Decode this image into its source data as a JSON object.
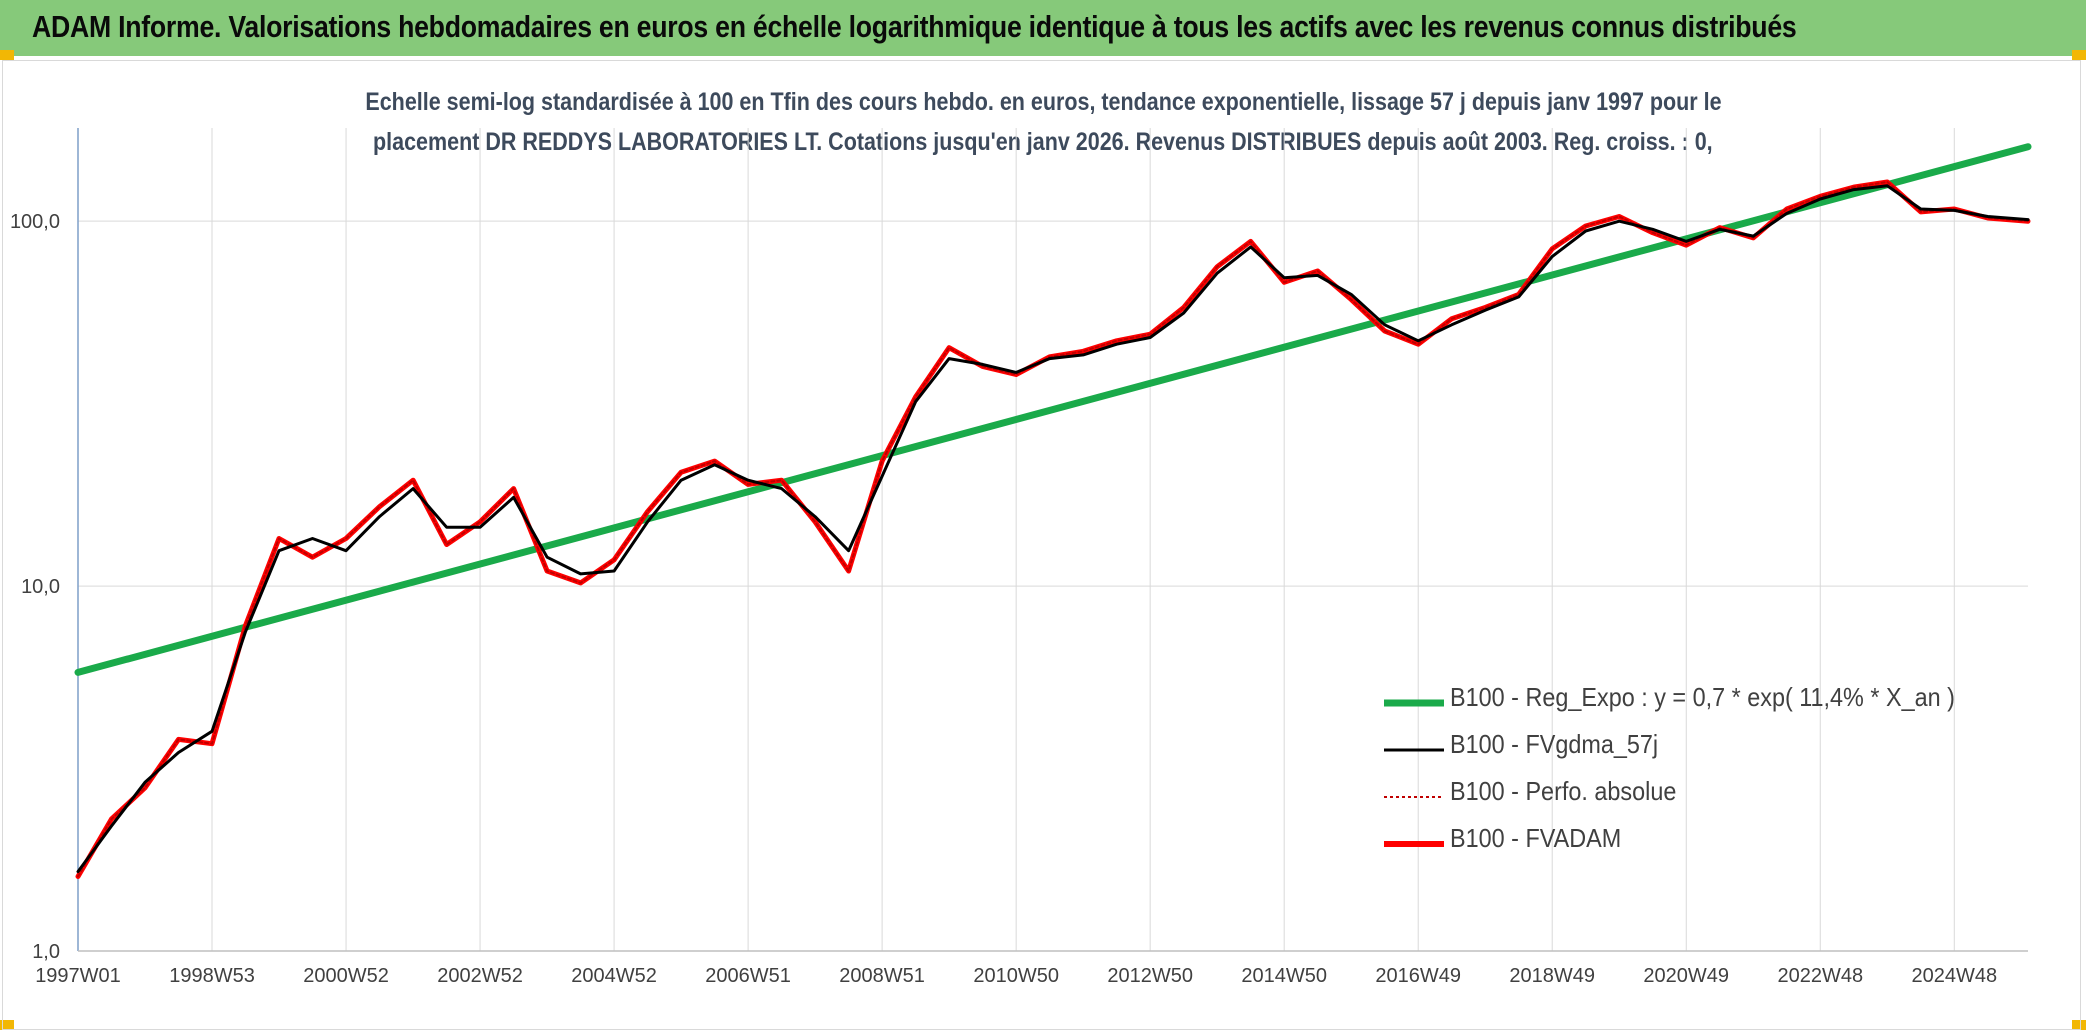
{
  "header": {
    "title": "ADAM Informe. Valorisations hebdomadaires en euros en échelle logarithmique identique à tous les actifs avec les revenus connus distribués"
  },
  "subtitle": {
    "line1": "Echelle semi-log standardisée à 100 en Tfin des cours hebdo. en euros, tendance exponentielle, lissage 57 j depuis janv 1997 pour le",
    "line2": "placement DR REDDYS LABORATORIES LT. Cotations jusqu'en janv 2026. Revenus DISTRIBUES depuis août 2003. Reg. croiss. : 0,"
  },
  "colors": {
    "banner": "#86c97a",
    "reg": "#1aaa4a",
    "fvgdma": "#000000",
    "perfo": "#c00000",
    "fvadam": "#ff0000",
    "grid": "#d9d9d9",
    "axis_text": "#404040"
  },
  "chart_data": {
    "type": "line",
    "yscale": "log",
    "ylim": [
      1,
      180
    ],
    "xlim": [
      1997.0,
      2026.1
    ],
    "y_ticks": [
      {
        "value": 1,
        "label": "1,0"
      },
      {
        "value": 10,
        "label": "10,0"
      },
      {
        "value": 100,
        "label": "100,0"
      }
    ],
    "x_ticks": [
      {
        "value": 1997.0,
        "label": "1997W01"
      },
      {
        "value": 1999.0,
        "label": "1998W53"
      },
      {
        "value": 2001.0,
        "label": "2000W52"
      },
      {
        "value": 2003.0,
        "label": "2002W52"
      },
      {
        "value": 2005.0,
        "label": "2004W52"
      },
      {
        "value": 2007.0,
        "label": "2006W51"
      },
      {
        "value": 2009.0,
        "label": "2008W51"
      },
      {
        "value": 2011.0,
        "label": "2010W50"
      },
      {
        "value": 2013.0,
        "label": "2012W50"
      },
      {
        "value": 2015.0,
        "label": "2014W50"
      },
      {
        "value": 2017.0,
        "label": "2016W49"
      },
      {
        "value": 2019.0,
        "label": "2018W49"
      },
      {
        "value": 2021.0,
        "label": "2020W49"
      },
      {
        "value": 2023.0,
        "label": "2022W48"
      },
      {
        "value": 2025.0,
        "label": "2024W48"
      }
    ],
    "series": [
      {
        "name": "B100 - Reg_Expo : y = 0,7 * exp( 11,4% *  X_an )",
        "key": "reg",
        "x": [
          1997.0,
          2026.1
        ],
        "y": [
          5.8,
          160
        ]
      },
      {
        "name": "B100 - FVgdma_57j",
        "key": "fvgdma",
        "x": [
          1997.0,
          1997.5,
          1998.0,
          1998.5,
          1999.0,
          1999.5,
          2000.0,
          2000.5,
          2001.0,
          2001.5,
          2002.0,
          2002.5,
          2003.0,
          2003.5,
          2004.0,
          2004.5,
          2005.0,
          2005.5,
          2006.0,
          2006.5,
          2007.0,
          2007.5,
          2008.0,
          2008.5,
          2009.0,
          2009.5,
          2010.0,
          2010.5,
          2011.0,
          2011.5,
          2012.0,
          2012.5,
          2013.0,
          2013.5,
          2014.0,
          2014.5,
          2015.0,
          2015.5,
          2016.0,
          2016.5,
          2017.0,
          2017.5,
          2018.0,
          2018.5,
          2019.0,
          2019.5,
          2020.0,
          2020.5,
          2021.0,
          2021.5,
          2022.0,
          2022.5,
          2023.0,
          2023.5,
          2024.0,
          2024.5,
          2025.0,
          2025.5,
          2026.1
        ],
        "y": [
          1.65,
          2.2,
          2.9,
          3.5,
          4.0,
          7.5,
          12.5,
          13.5,
          12.5,
          15.5,
          18.5,
          14.5,
          14.5,
          17.5,
          12.0,
          10.8,
          11.0,
          15.0,
          19.5,
          21.5,
          19.5,
          18.5,
          15.5,
          12.5,
          20.0,
          32.0,
          42.0,
          40.5,
          38.5,
          42.0,
          43.0,
          46.0,
          48.0,
          56.0,
          72.0,
          85.0,
          70.0,
          71.0,
          63.0,
          52.0,
          47.0,
          52.0,
          57.0,
          62.0,
          80.0,
          94.0,
          100.0,
          95.0,
          88.0,
          95.0,
          91.0,
          105.0,
          115.0,
          122.0,
          125.0,
          108.0,
          107.0,
          103.0,
          101.0
        ]
      },
      {
        "name": "B100 - Perfo. absolue",
        "key": "perfo",
        "x": [
          1997.0,
          1997.5,
          1998.0,
          1998.5,
          1999.0,
          1999.5,
          2000.0,
          2000.5,
          2001.0,
          2001.5,
          2002.0,
          2002.5,
          2003.0,
          2003.5,
          2004.0,
          2004.5,
          2005.0,
          2005.5,
          2006.0,
          2006.5,
          2007.0,
          2007.5,
          2008.0,
          2008.5,
          2009.0,
          2009.5,
          2010.0,
          2010.5,
          2011.0,
          2011.5,
          2012.0,
          2012.5,
          2013.0,
          2013.5,
          2014.0,
          2014.5,
          2015.0,
          2015.5,
          2016.0,
          2016.5,
          2017.0,
          2017.5,
          2018.0,
          2018.5,
          2019.0,
          2019.5,
          2020.0,
          2020.5,
          2021.0,
          2021.5,
          2022.0,
          2022.5,
          2023.0,
          2023.5,
          2024.0,
          2024.5,
          2025.0,
          2025.5,
          2026.1
        ],
        "y": [
          1.6,
          2.3,
          2.8,
          3.8,
          3.7,
          7.8,
          13.5,
          12.0,
          13.5,
          16.5,
          19.5,
          13.0,
          15.0,
          18.5,
          11.0,
          10.2,
          11.8,
          16.0,
          20.5,
          22.0,
          19.0,
          19.5,
          15.0,
          11.0,
          22.0,
          33.0,
          45.0,
          40.0,
          38.0,
          42.5,
          44.0,
          47.0,
          49.0,
          58.0,
          75.0,
          88.0,
          68.0,
          73.0,
          61.0,
          50.0,
          46.0,
          54.0,
          58.0,
          63.0,
          84.0,
          97.0,
          103.0,
          93.0,
          86.0,
          96.0,
          90.0,
          108.0,
          117.0,
          124.0,
          128.0,
          106.0,
          108.0,
          102.0,
          100.0
        ]
      },
      {
        "name": "B100 - FVADAM",
        "key": "fvadam",
        "x": [
          1997.0,
          1997.5,
          1998.0,
          1998.5,
          1999.0,
          1999.5,
          2000.0,
          2000.5,
          2001.0,
          2001.5,
          2002.0,
          2002.5,
          2003.0,
          2003.5,
          2004.0,
          2004.5,
          2005.0,
          2005.5,
          2006.0,
          2006.5,
          2007.0,
          2007.5,
          2008.0,
          2008.5,
          2009.0,
          2009.5,
          2010.0,
          2010.5,
          2011.0,
          2011.5,
          2012.0,
          2012.5,
          2013.0,
          2013.5,
          2014.0,
          2014.5,
          2015.0,
          2015.5,
          2016.0,
          2016.5,
          2017.0,
          2017.5,
          2018.0,
          2018.5,
          2019.0,
          2019.5,
          2020.0,
          2020.5,
          2021.0,
          2021.5,
          2022.0,
          2022.5,
          2023.0,
          2023.5,
          2024.0,
          2024.5,
          2025.0,
          2025.5,
          2026.1
        ],
        "y": [
          1.6,
          2.3,
          2.8,
          3.8,
          3.7,
          7.8,
          13.5,
          12.0,
          13.5,
          16.5,
          19.5,
          13.0,
          15.0,
          18.5,
          11.0,
          10.2,
          11.8,
          16.0,
          20.5,
          22.0,
          19.0,
          19.5,
          15.0,
          11.0,
          22.0,
          33.0,
          45.0,
          40.0,
          38.0,
          42.5,
          44.0,
          47.0,
          49.0,
          58.0,
          75.0,
          88.0,
          68.0,
          73.0,
          61.0,
          50.0,
          46.0,
          54.0,
          58.0,
          63.0,
          84.0,
          97.0,
          103.0,
          93.0,
          86.0,
          96.0,
          90.0,
          108.0,
          117.0,
          124.0,
          128.0,
          106.0,
          108.0,
          102.0,
          100.0
        ]
      }
    ],
    "legend": {
      "position": "bottom-right",
      "labels": [
        "B100 - Reg_Expo : y = 0,7 * exp( 11,4% *  X_an )",
        "B100 - FVgdma_57j",
        "B100 - Perfo. absolue",
        "B100 - FVADAM"
      ]
    },
    "grid": true
  }
}
